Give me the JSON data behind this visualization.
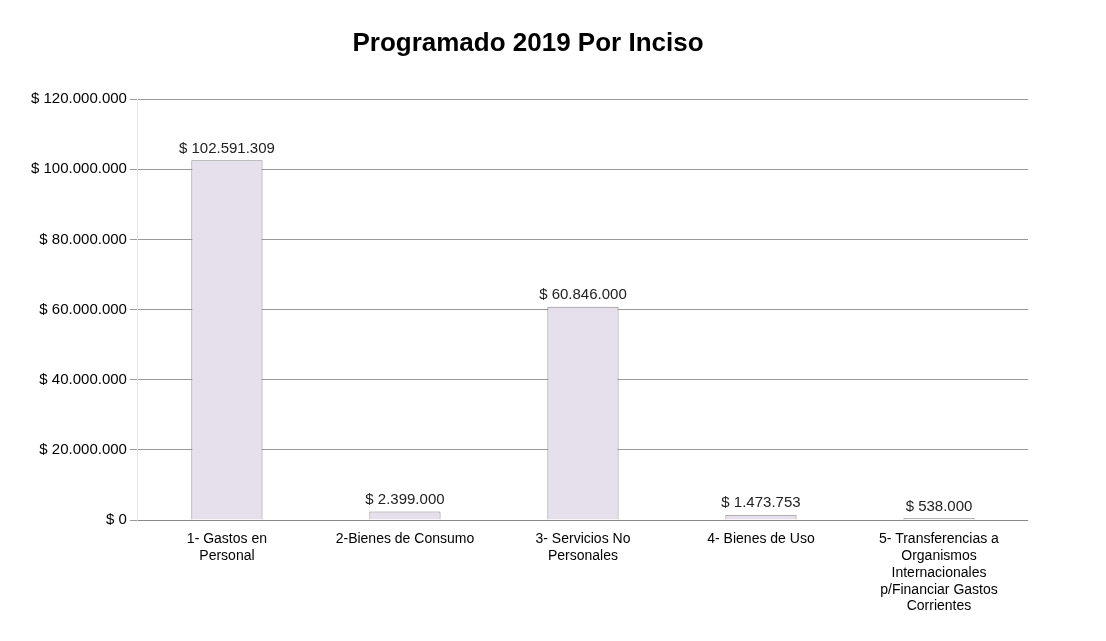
{
  "chart_data": {
    "type": "bar",
    "title": "Programado 2019 Por Inciso",
    "categories": [
      "1- Gastos en Personal",
      "2-Bienes de Consumo",
      "3- Servicios No Personales",
      "4- Bienes de Uso",
      "5- Transferencias a Organismos Internacionales p/Financiar Gastos Corrientes"
    ],
    "values": [
      102591309,
      2399000,
      60846000,
      1473753,
      538000
    ],
    "value_labels": [
      "$ 102.591.309",
      "$ 2.399.000",
      "$ 60.846.000",
      "$ 1.473.753",
      "$ 538.000"
    ],
    "color": "#e6e0ec",
    "ylim": [
      0,
      120000000
    ],
    "yticks": [
      {
        "value": 0,
        "label": "$ 0"
      },
      {
        "value": 20000000,
        "label": "$ 20.000.000"
      },
      {
        "value": 40000000,
        "label": "$ 40.000.000"
      },
      {
        "value": 60000000,
        "label": "$ 60.000.000"
      },
      {
        "value": 80000000,
        "label": "$ 80.000.000"
      },
      {
        "value": 100000000,
        "label": "$ 100.000.000"
      },
      {
        "value": 120000000,
        "label": "$ 120.000.000"
      }
    ],
    "grid": "y",
    "legend": false
  }
}
